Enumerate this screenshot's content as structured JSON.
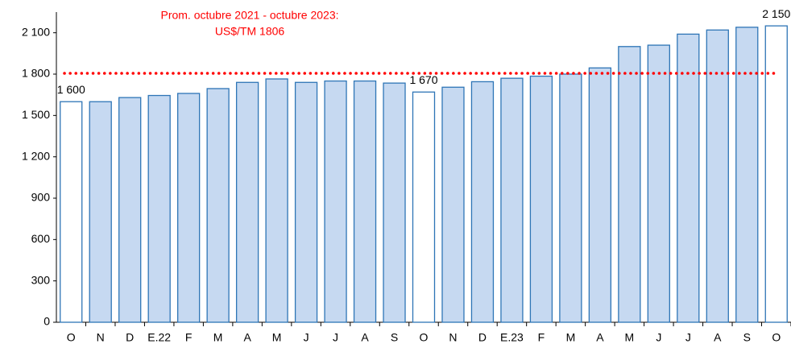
{
  "chart_data": {
    "type": "bar",
    "annotation": [
      "Prom. octubre 2021 - octubre 2023:",
      "US$/TM 1806"
    ],
    "categories": [
      "O",
      "N",
      "D",
      "E.22",
      "F",
      "M",
      "A",
      "M",
      "J",
      "J",
      "A",
      "S",
      "O",
      "N",
      "D",
      "E.23",
      "F",
      "M",
      "A",
      "M",
      "J",
      "J",
      "A",
      "S",
      "O"
    ],
    "values": [
      1600,
      1600,
      1630,
      1645,
      1660,
      1695,
      1740,
      1765,
      1740,
      1750,
      1750,
      1735,
      1670,
      1705,
      1745,
      1770,
      1785,
      1800,
      1845,
      2000,
      2010,
      2090,
      2120,
      2140,
      2150
    ],
    "value_labels": [
      "1 600",
      null,
      null,
      null,
      null,
      null,
      null,
      null,
      null,
      null,
      null,
      null,
      "1 670",
      null,
      null,
      null,
      null,
      null,
      null,
      null,
      null,
      null,
      null,
      null,
      "2 150"
    ],
    "colors": [
      "#ffffff",
      "#c6d9f1",
      "#c6d9f1",
      "#c6d9f1",
      "#c6d9f1",
      "#c6d9f1",
      "#c6d9f1",
      "#c6d9f1",
      "#c6d9f1",
      "#c6d9f1",
      "#c6d9f1",
      "#c6d9f1",
      "#ffffff",
      "#c6d9f1",
      "#c6d9f1",
      "#c6d9f1",
      "#c6d9f1",
      "#c6d9f1",
      "#c6d9f1",
      "#c6d9f1",
      "#c6d9f1",
      "#c6d9f1",
      "#c6d9f1",
      "#c6d9f1",
      "#ffffff"
    ],
    "edge_color": "#2e75b6",
    "reference_line": {
      "value": 1806,
      "color": "#ff0000"
    },
    "ylim": [
      0,
      2250
    ],
    "yticks": [
      0,
      300,
      600,
      900,
      {
        "value": 1200,
        "label": "1 200"
      },
      {
        "value": 1500,
        "label": "1 500"
      },
      {
        "value": 1800,
        "label": "1 800"
      },
      {
        "value": 2100,
        "label": "2 100"
      }
    ]
  }
}
